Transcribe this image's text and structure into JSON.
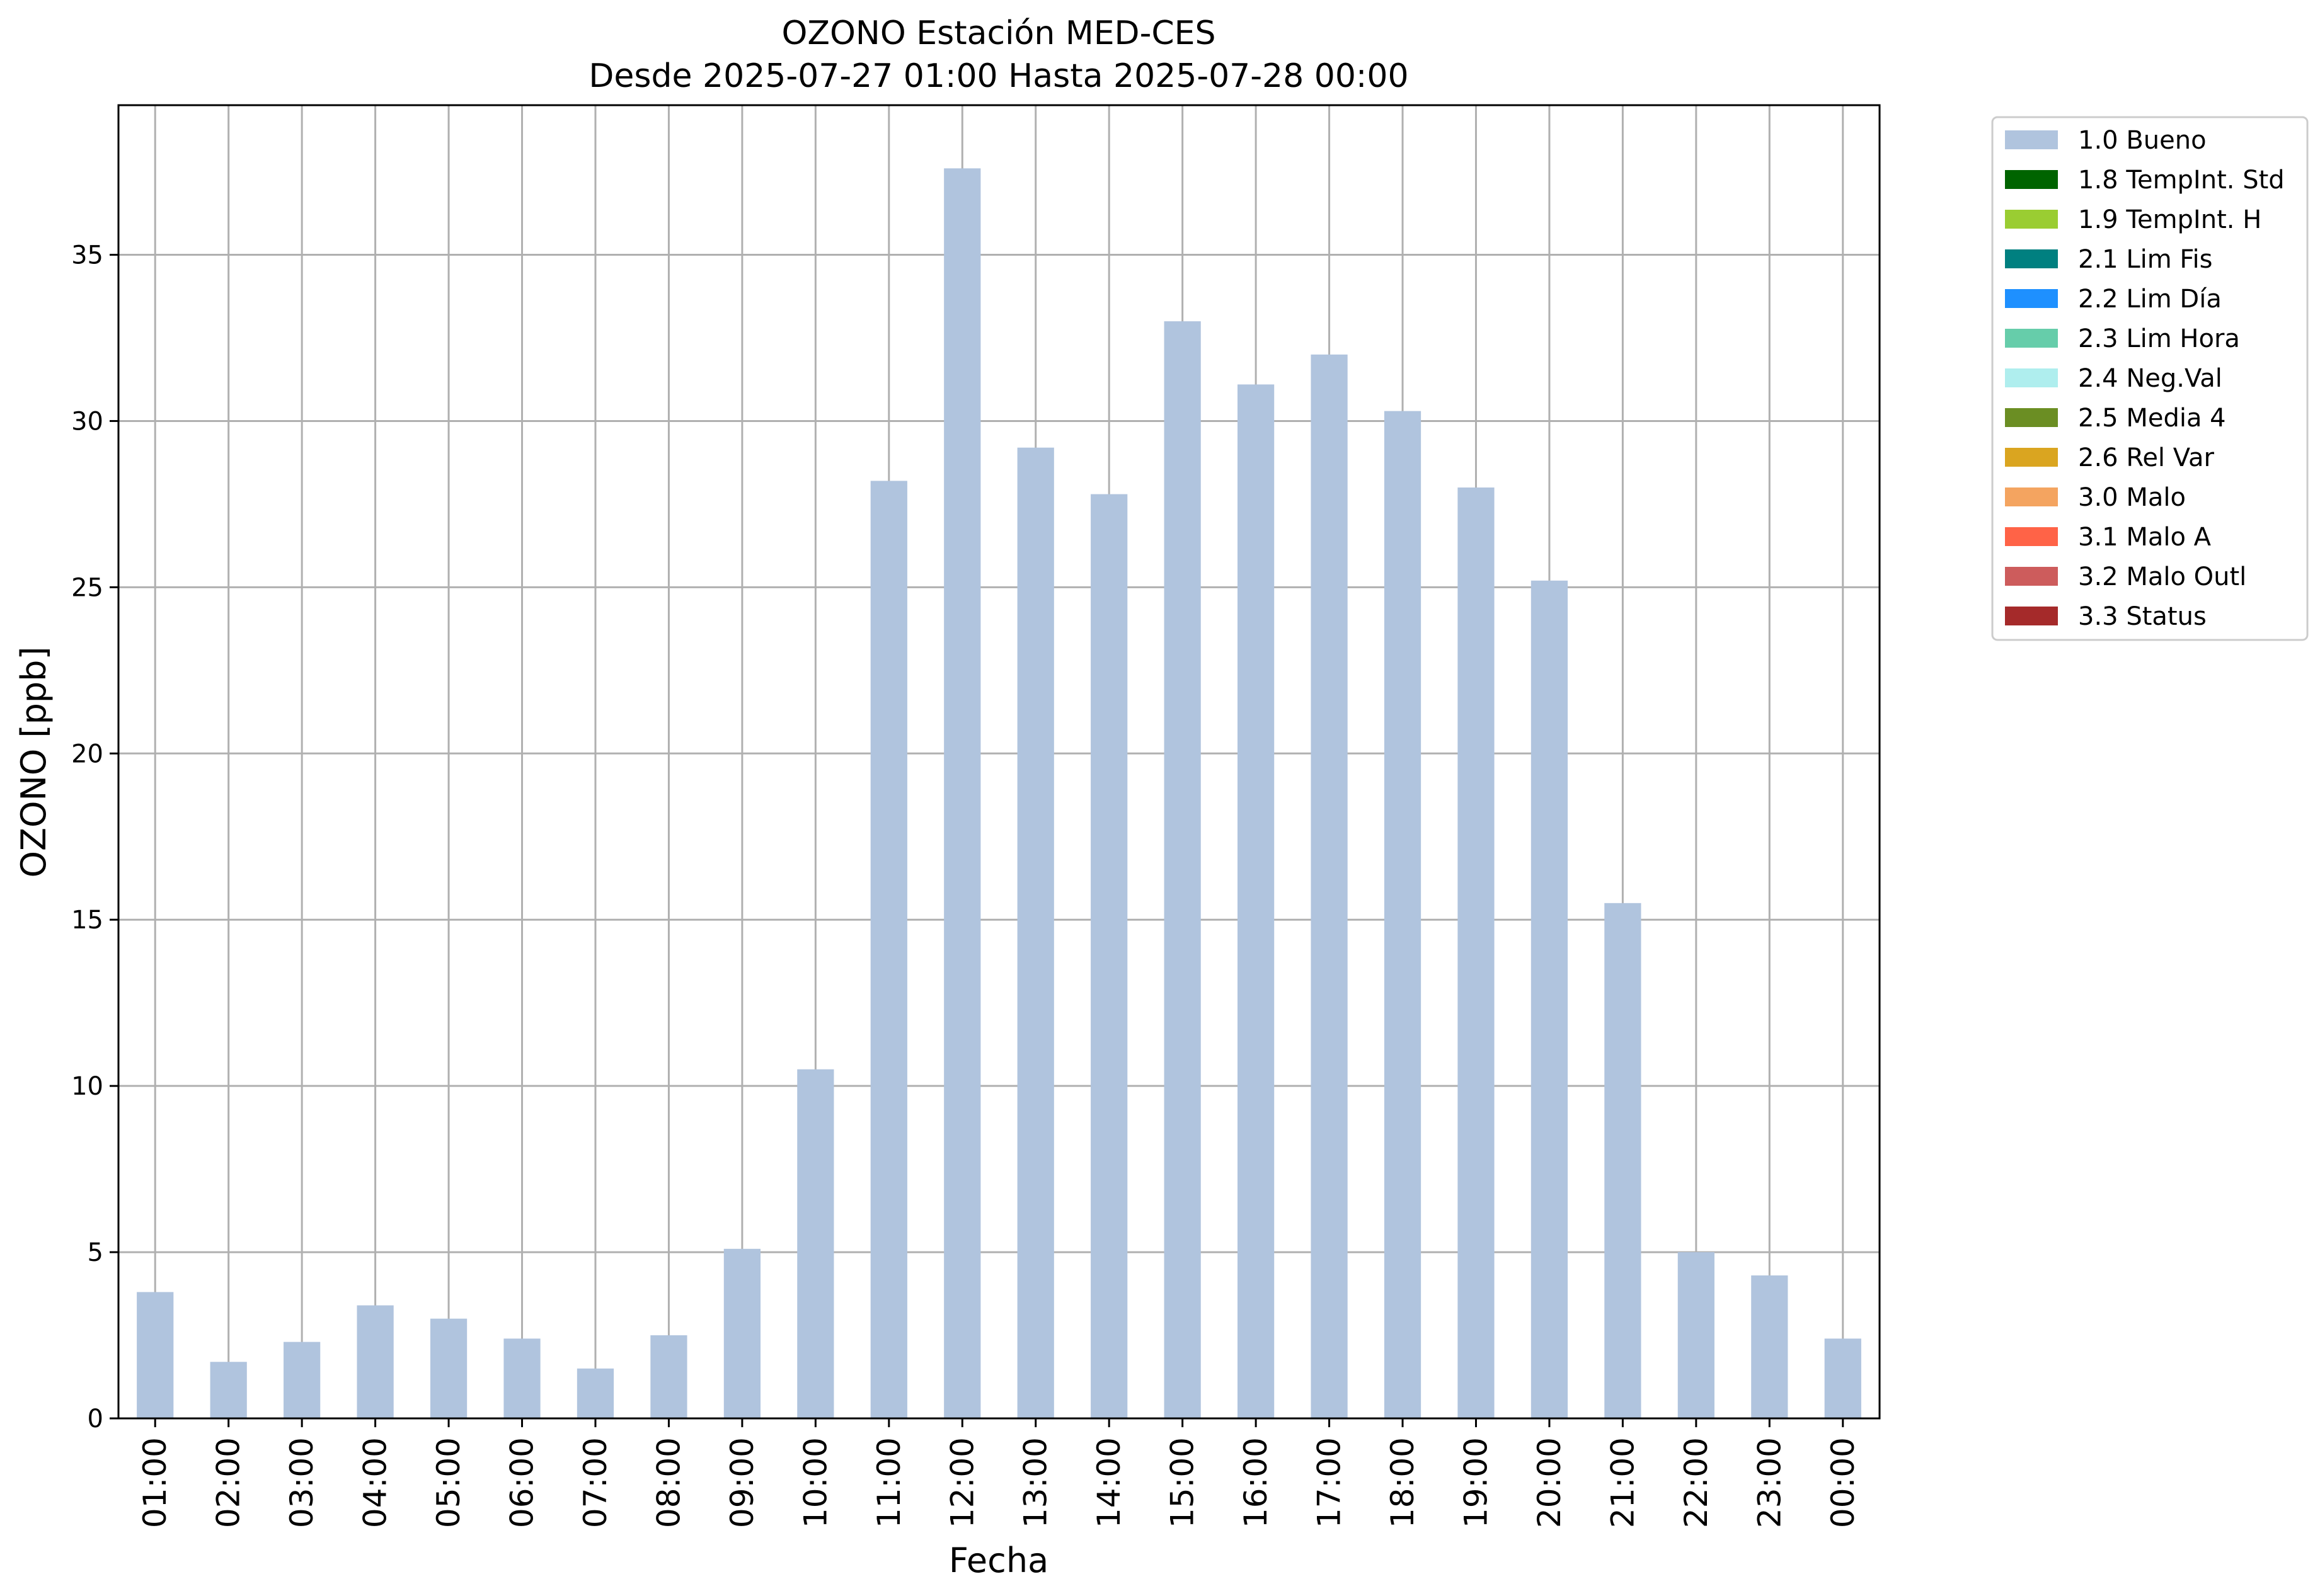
{
  "chart_data": {
    "type": "bar",
    "title": "OZONO Estación MED-CES",
    "subtitle": "Desde 2025-07-27 01:00 Hasta 2025-07-28 00:00",
    "xlabel": "Fecha",
    "ylabel": "OZONO [ppb]",
    "ylim": [
      0,
      39.5
    ],
    "yticks": [
      0,
      5,
      10,
      15,
      20,
      25,
      30,
      35
    ],
    "grid": true,
    "legend_position": "outside-top-right",
    "categories": [
      "01:00",
      "02:00",
      "03:00",
      "04:00",
      "05:00",
      "06:00",
      "07:00",
      "08:00",
      "09:00",
      "10:00",
      "11:00",
      "12:00",
      "13:00",
      "14:00",
      "15:00",
      "16:00",
      "17:00",
      "18:00",
      "19:00",
      "20:00",
      "21:00",
      "22:00",
      "23:00",
      "00:00"
    ],
    "series": [
      {
        "name": "1.0 Bueno",
        "color": "#b0c4de",
        "values": [
          3.8,
          1.7,
          2.3,
          3.4,
          3.0,
          2.4,
          1.5,
          2.5,
          5.1,
          10.5,
          28.2,
          37.6,
          29.2,
          27.8,
          33.0,
          31.1,
          32.0,
          30.3,
          28.0,
          25.2,
          15.5,
          5.0,
          4.3,
          2.4
        ]
      }
    ],
    "legend": [
      {
        "label": "1.0 Bueno",
        "color": "#b0c4de"
      },
      {
        "label": "1.8 TempInt. Std",
        "color": "#006400"
      },
      {
        "label": "1.9 TempInt. H",
        "color": "#9acd32"
      },
      {
        "label": "2.1 Lim Fis",
        "color": "#008080"
      },
      {
        "label": "2.2 Lim Día",
        "color": "#1e90ff"
      },
      {
        "label": "2.3 Lim Hora",
        "color": "#66cdaa"
      },
      {
        "label": "2.4 Neg.Val",
        "color": "#afeeee"
      },
      {
        "label": "2.5 Media 4",
        "color": "#6b8e23"
      },
      {
        "label": "2.6 Rel Var",
        "color": "#daa520"
      },
      {
        "label": "3.0 Malo",
        "color": "#f4a460"
      },
      {
        "label": "3.1 Malo A",
        "color": "#ff6347"
      },
      {
        "label": "3.2 Malo Outl",
        "color": "#cd5c5c"
      },
      {
        "label": "3.3 Status",
        "color": "#a52a2a"
      }
    ]
  }
}
